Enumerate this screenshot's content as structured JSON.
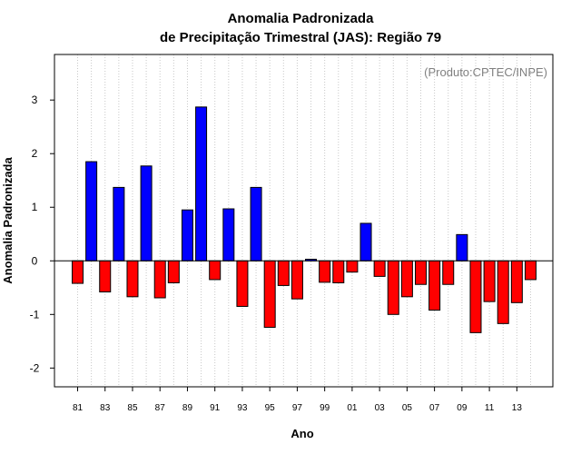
{
  "chart_data": {
    "type": "bar",
    "title": "Anomalia Padronizada",
    "subtitle": "de Precipitação Trimestral (JAS): Região 79",
    "xlabel": "Ano",
    "ylabel": "Anomalia Padronizada",
    "watermark": "(Produto:CPTEC/INPE)",
    "ylim": [
      -2.35,
      3.85
    ],
    "yticks": [
      -2,
      -1,
      0,
      1,
      2,
      3
    ],
    "categories": [
      "1981",
      "1982",
      "1983",
      "1984",
      "1985",
      "1986",
      "1987",
      "1988",
      "1989",
      "1990",
      "1991",
      "1992",
      "1993",
      "1994",
      "1995",
      "1996",
      "1997",
      "1998",
      "1999",
      "2000",
      "2001",
      "2002",
      "2003",
      "2004",
      "2005",
      "2006",
      "2007",
      "2008",
      "2009",
      "2010",
      "2011",
      "2012",
      "2013",
      "2014"
    ],
    "values": [
      -0.42,
      1.85,
      -0.58,
      1.37,
      -0.67,
      1.77,
      -0.69,
      -0.41,
      0.95,
      2.87,
      -0.35,
      0.97,
      -0.85,
      1.37,
      -1.24,
      -0.46,
      -0.71,
      0.03,
      -0.4,
      -0.41,
      -0.21,
      0.7,
      -0.29,
      -1.0,
      -0.67,
      -0.44,
      -0.92,
      -0.44,
      0.49,
      -1.34,
      -0.76,
      -1.17,
      -0.78,
      -0.35
    ],
    "x_tick_labels": [
      "81",
      "83",
      "85",
      "87",
      "89",
      "91",
      "93",
      "95",
      "97",
      "99",
      "01",
      "03",
      "05",
      "07",
      "09",
      "11",
      "13"
    ],
    "positive_color": "#0000ff",
    "negative_color": "#ff0000",
    "grid": true
  }
}
